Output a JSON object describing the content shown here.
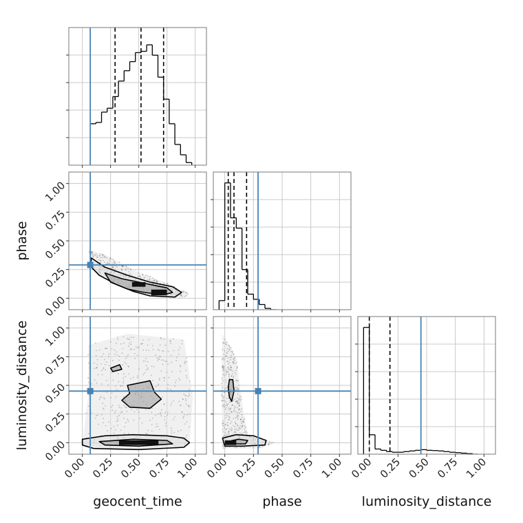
{
  "chart_data": {
    "type": "corner",
    "parameters": [
      "geocent_time",
      "phase",
      "luminosity_distance"
    ],
    "axis_labels": {
      "geocent_time": "geocent_time",
      "phase": "phase",
      "luminosity_distance": "luminosity_distance"
    },
    "tick_values": [
      0.0,
      0.25,
      0.5,
      0.75,
      1.0
    ],
    "tick_labels": [
      "0.00",
      "0.25",
      "0.50",
      "0.75",
      "1.00"
    ],
    "axis_range": {
      "geocent_time": [
        -0.12,
        1.1
      ],
      "phase": [
        -0.1,
        1.1
      ],
      "luminosity_distance": [
        -0.1,
        1.1
      ]
    },
    "truth_values": {
      "geocent_time": 0.07,
      "phase": 0.29,
      "luminosity_distance": 0.45
    },
    "truth_color": "#4682b4",
    "quantiles": {
      "geocent_time": [
        0.29,
        0.52,
        0.72
      ],
      "phase": [
        0.03,
        0.08,
        0.19
      ],
      "luminosity_distance": [
        0.0,
        0.18
      ]
    },
    "grid": true,
    "histograms": {
      "geocent_time": {
        "edges": [
          0.07,
          0.12,
          0.17,
          0.22,
          0.27,
          0.32,
          0.37,
          0.42,
          0.47,
          0.52,
          0.57,
          0.62,
          0.67,
          0.72,
          0.77,
          0.82,
          0.87,
          0.92,
          0.97
        ],
        "values": [
          0.32,
          0.33,
          0.41,
          0.44,
          0.53,
          0.65,
          0.73,
          0.8,
          0.87,
          0.88,
          0.93,
          0.85,
          0.68,
          0.51,
          0.32,
          0.16,
          0.08,
          0.02
        ],
        "max": 1.0
      },
      "phase": {
        "edges": [
          -0.05,
          0.0,
          0.05,
          0.1,
          0.15,
          0.2,
          0.25,
          0.3,
          0.35,
          0.4,
          0.45
        ],
        "values": [
          0.07,
          0.98,
          0.71,
          0.63,
          0.31,
          0.12,
          0.08,
          0.04,
          0.01,
          0.0
        ],
        "max": 1.0
      },
      "luminosity_distance": {
        "edges": [
          -0.05,
          0.0,
          0.05,
          0.1,
          0.15,
          0.2,
          0.25,
          0.3,
          0.35,
          0.4,
          0.45,
          0.5,
          0.55,
          0.6,
          0.65,
          0.7,
          0.75,
          0.8,
          0.85,
          0.9,
          0.95
        ],
        "values": [
          0.98,
          0.15,
          0.04,
          0.03,
          0.02,
          0.015,
          0.015,
          0.02,
          0.025,
          0.03,
          0.035,
          0.03,
          0.028,
          0.025,
          0.02,
          0.015,
          0.012,
          0.008,
          0.004,
          0.0
        ],
        "max": 1.0
      }
    },
    "density_2d": [
      {
        "x": "geocent_time",
        "y": "phase",
        "cloud_path": [
          [
            0.05,
            0.42
          ],
          [
            0.2,
            0.38
          ],
          [
            0.45,
            0.25
          ],
          [
            0.75,
            0.13
          ],
          [
            0.95,
            0.04
          ],
          [
            0.9,
            0.0
          ],
          [
            0.6,
            0.02
          ],
          [
            0.3,
            0.13
          ],
          [
            0.1,
            0.25
          ]
        ],
        "contours": [
          [
            [
              0.08,
              0.35
            ],
            [
              0.2,
              0.27
            ],
            [
              0.4,
              0.2
            ],
            [
              0.6,
              0.14
            ],
            [
              0.8,
              0.1
            ],
            [
              0.88,
              0.05
            ],
            [
              0.82,
              0.01
            ],
            [
              0.6,
              0.02
            ],
            [
              0.45,
              0.06
            ],
            [
              0.3,
              0.12
            ],
            [
              0.15,
              0.2
            ],
            [
              0.07,
              0.28
            ]
          ],
          [
            [
              0.2,
              0.22
            ],
            [
              0.35,
              0.17
            ],
            [
              0.55,
              0.13
            ],
            [
              0.75,
              0.09
            ],
            [
              0.8,
              0.05
            ],
            [
              0.72,
              0.03
            ],
            [
              0.55,
              0.05
            ],
            [
              0.4,
              0.08
            ],
            [
              0.25,
              0.14
            ]
          ]
        ],
        "cores": [
          {
            "x": 0.5,
            "y": 0.12,
            "w": 0.12,
            "h": 0.04
          },
          {
            "x": 0.68,
            "y": 0.05,
            "w": 0.14,
            "h": 0.05
          }
        ]
      },
      {
        "x": "geocent_time",
        "y": "luminosity_distance",
        "cloud_path": [
          [
            0.05,
            0.85
          ],
          [
            0.4,
            0.95
          ],
          [
            0.9,
            0.9
          ],
          [
            0.98,
            0.4
          ],
          [
            0.95,
            -0.03
          ],
          [
            0.0,
            -0.03
          ],
          [
            0.05,
            0.4
          ]
        ],
        "contours": [
          [
            [
              0.0,
              0.03
            ],
            [
              0.2,
              0.06
            ],
            [
              0.45,
              0.07
            ],
            [
              0.75,
              0.06
            ],
            [
              0.9,
              0.04
            ],
            [
              0.95,
              0.0
            ],
            [
              0.9,
              -0.04
            ],
            [
              0.5,
              -0.06
            ],
            [
              0.1,
              -0.05
            ],
            [
              0.0,
              -0.02
            ]
          ],
          [
            [
              0.15,
              0.01
            ],
            [
              0.45,
              0.03
            ],
            [
              0.75,
              0.02
            ],
            [
              0.8,
              -0.01
            ],
            [
              0.5,
              -0.03
            ],
            [
              0.2,
              -0.02
            ]
          ],
          [
            [
              0.4,
              0.5
            ],
            [
              0.6,
              0.54
            ],
            [
              0.64,
              0.44
            ],
            [
              0.7,
              0.38
            ],
            [
              0.6,
              0.3
            ],
            [
              0.42,
              0.31
            ],
            [
              0.35,
              0.37
            ],
            [
              0.42,
              0.43
            ]
          ],
          [
            [
              0.25,
              0.65
            ],
            [
              0.33,
              0.68
            ],
            [
              0.35,
              0.64
            ],
            [
              0.27,
              0.62
            ]
          ]
        ],
        "cores": [
          {
            "x": 0.5,
            "y": 0.0,
            "w": 0.35,
            "h": 0.04
          }
        ]
      },
      {
        "x": "phase",
        "y": "luminosity_distance",
        "cloud_path": [
          [
            -0.02,
            0.95
          ],
          [
            0.1,
            0.75
          ],
          [
            0.15,
            0.35
          ],
          [
            0.2,
            0.06
          ],
          [
            0.45,
            0.0
          ],
          [
            0.3,
            -0.05
          ],
          [
            -0.02,
            -0.05
          ],
          [
            -0.03,
            0.5
          ]
        ],
        "contours": [
          [
            [
              -0.02,
              0.04
            ],
            [
              0.1,
              0.07
            ],
            [
              0.25,
              0.06
            ],
            [
              0.36,
              0.02
            ],
            [
              0.35,
              -0.02
            ],
            [
              0.15,
              -0.03
            ],
            [
              0.0,
              -0.03
            ]
          ],
          [
            [
              0.02,
              0.01
            ],
            [
              0.12,
              0.03
            ],
            [
              0.2,
              0.02
            ],
            [
              0.18,
              -0.01
            ],
            [
              0.05,
              -0.01
            ]
          ],
          [
            [
              0.04,
              0.55
            ],
            [
              0.07,
              0.55
            ],
            [
              0.08,
              0.45
            ],
            [
              0.06,
              0.36
            ],
            [
              0.04,
              0.4
            ],
            [
              0.03,
              0.48
            ]
          ]
        ],
        "cores": [
          {
            "x": 0.05,
            "y": 0.0,
            "w": 0.1,
            "h": 0.04
          }
        ]
      }
    ]
  }
}
